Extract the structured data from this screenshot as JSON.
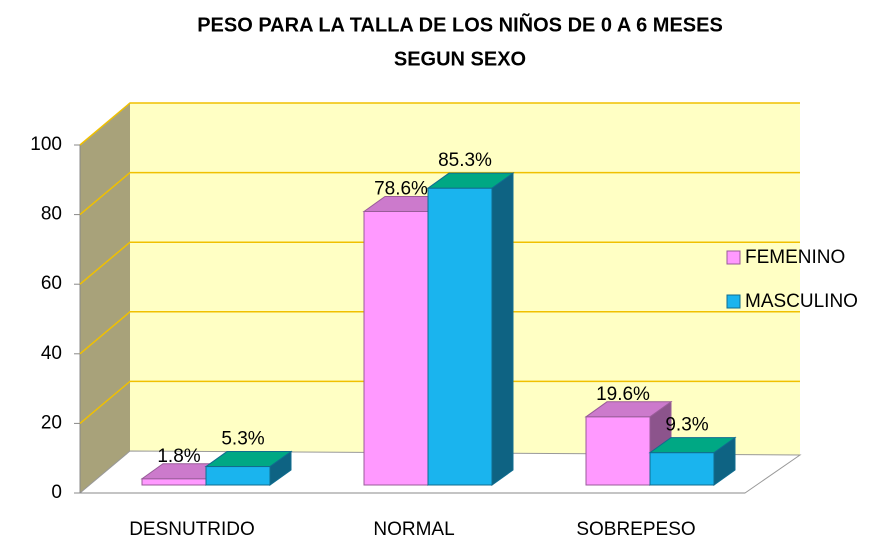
{
  "chart_data": {
    "type": "bar3d",
    "title": [
      "PESO PARA LA TALLA DE LOS NIÑOS DE 0 A 6 MESES",
      "SEGUN SEXO"
    ],
    "categories": [
      "DESNUTRIDO",
      "NORMAL",
      "SOBREPESO"
    ],
    "series": [
      {
        "name": "FEMENINO",
        "color": "#ff99ff",
        "values": [
          1.8,
          78.6,
          19.6
        ],
        "value_labels": [
          "1.8%",
          "78.6%",
          "19.6%"
        ]
      },
      {
        "name": "MASCULINO",
        "color": "#1ab4ee",
        "values": [
          5.3,
          85.3,
          9.3
        ],
        "value_labels": [
          "5.3%",
          "85.3%",
          "9.3%"
        ]
      }
    ],
    "ylim": [
      0,
      100
    ],
    "yticks": [
      0,
      20,
      40,
      60,
      80,
      100
    ],
    "grid": true,
    "legend": "right"
  }
}
